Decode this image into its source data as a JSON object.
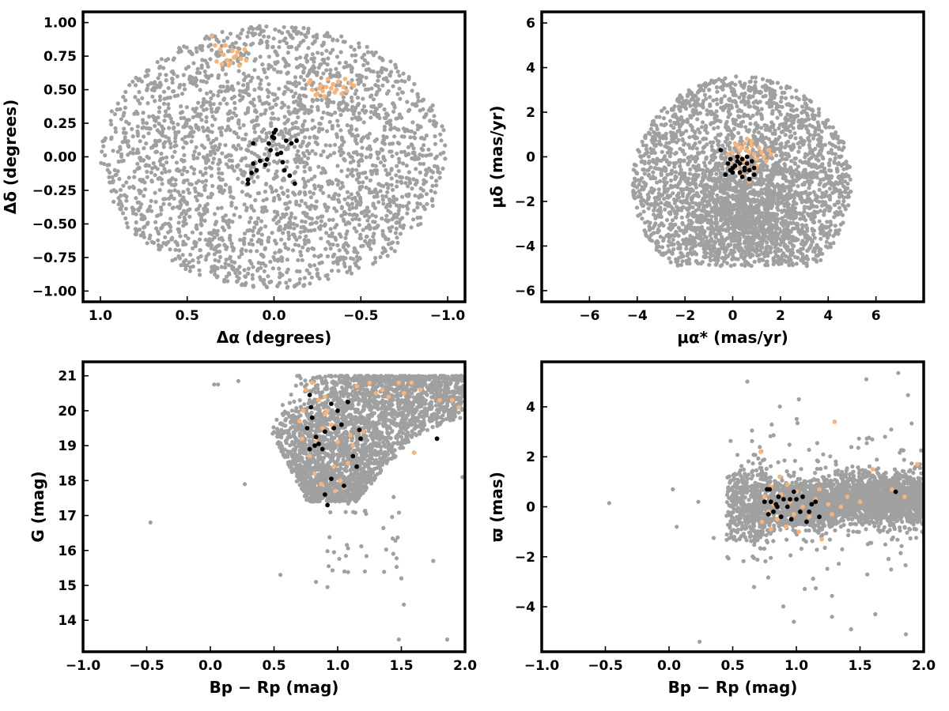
{
  "colors": {
    "field": "#a0a0a0",
    "members": "#000000",
    "groups": "#f8b37a"
  },
  "chart_data": [
    {
      "type": "scatter",
      "xlabel": "Δα (degrees)",
      "ylabel": "Δδ (degrees)",
      "xlim": [
        1.1,
        -1.1
      ],
      "ylim": [
        -1.08,
        1.08
      ],
      "xticks": [
        1.0,
        0.5,
        0.0,
        -0.5,
        -1.0
      ],
      "xtick_labels": [
        "1.0",
        "0.5",
        "0.0",
        "−0.5",
        "−1.0"
      ],
      "yticks": [
        -1.0,
        -0.75,
        -0.5,
        -0.25,
        0.0,
        0.25,
        0.5,
        0.75,
        1.0
      ],
      "ytick_labels": [
        "−1.00",
        "−0.75",
        "−0.50",
        "−0.25",
        "0.00",
        "0.25",
        "0.50",
        "0.75",
        "1.00"
      ],
      "series": [
        {
          "color": "field",
          "field": {
            "shape": "disk",
            "cx": 0.0,
            "cy": 0.0,
            "rx": 1.0,
            "ry": 0.98,
            "n": 2600
          }
        },
        {
          "color": "groups",
          "x": [
            0.36,
            0.34,
            0.31,
            0.29,
            0.27,
            0.25,
            0.23,
            0.21,
            0.19,
            0.17,
            0.16,
            0.3,
            0.26,
            0.22,
            0.33,
            0.28,
            0.24,
            0.2,
            -0.2,
            -0.22,
            -0.25,
            -0.27,
            -0.29,
            -0.31,
            -0.33,
            -0.35,
            -0.37,
            -0.4,
            -0.42,
            -0.44,
            -0.46,
            -0.24,
            -0.3,
            -0.36,
            -0.41,
            -0.28,
            -0.34,
            -0.39,
            -0.21,
            -0.26
          ],
          "y": [
            0.9,
            0.83,
            0.8,
            0.76,
            0.72,
            0.7,
            0.74,
            0.78,
            0.73,
            0.8,
            0.72,
            0.69,
            0.68,
            0.75,
            0.71,
            0.83,
            0.79,
            0.68,
            0.55,
            0.5,
            0.47,
            0.53,
            0.45,
            0.58,
            0.51,
            0.48,
            0.56,
            0.52,
            0.49,
            0.55,
            0.53,
            0.46,
            0.52,
            0.5,
            0.58,
            0.49,
            0.54,
            0.47,
            0.57,
            0.51
          ]
        },
        {
          "color": "members",
          "x": [
            0.15,
            0.15,
            0.13,
            0.12,
            0.1,
            0.08,
            0.05,
            0.04,
            0.02,
            0.0,
            0.0,
            -0.01,
            -0.02,
            -0.05,
            -0.06,
            -0.07,
            -0.09,
            -0.1,
            -0.12,
            -0.13,
            0.01,
            0.03,
            -0.04,
            0.12
          ],
          "y": [
            -0.2,
            -0.17,
            -0.12,
            0.1,
            -0.1,
            -0.03,
            -0.06,
            -0.02,
            0.05,
            0.14,
            0.18,
            0.2,
            0.02,
            -0.04,
            -0.1,
            0.12,
            -0.14,
            0.1,
            -0.2,
            0.12,
            0.15,
            0.1,
            0.03,
            -0.05
          ]
        }
      ]
    },
    {
      "type": "scatter",
      "xlabel": "μα* (mas/yr)",
      "ylabel": "μδ (mas/yr)",
      "xlim": [
        -8,
        8
      ],
      "ylim": [
        -6.5,
        6.5
      ],
      "xticks": [
        -6,
        -4,
        -2,
        0,
        2,
        4,
        6
      ],
      "xtick_labels": [
        "−6",
        "−4",
        "−2",
        "0",
        "2",
        "4",
        "6"
      ],
      "yticks": [
        -6,
        -4,
        -2,
        0,
        2,
        4,
        6
      ],
      "ytick_labels": [
        "−6",
        "−4",
        "−2",
        "0",
        "2",
        "4",
        "6"
      ],
      "series": [
        {
          "color": "field",
          "field": {
            "shape": "disk",
            "cx": 0.4,
            "cy": -1.2,
            "rx": 4.6,
            "ry": 3.7,
            "n": 2300,
            "core": [
              0.5,
              -2.5,
              1.4,
              1.3,
              1000
            ],
            "clip_y": [
              -4.9,
              4.9
            ]
          }
        },
        {
          "color": "groups",
          "x": [
            0.1,
            0.2,
            0.4,
            0.5,
            0.6,
            0.7,
            0.8,
            0.3,
            0.9,
            1.0,
            1.2,
            1.4,
            1.5,
            0.0,
            -0.1,
            0.2,
            0.6,
            0.9,
            1.1,
            0.4,
            0.7,
            1.3,
            0.5,
            0.8,
            -0.2,
            0.3,
            1.0,
            0.6,
            0.2,
            1.6
          ],
          "y": [
            0.6,
            0.5,
            0.4,
            0.6,
            0.3,
            0.2,
            0.5,
            0.0,
            0.1,
            -0.1,
            0.2,
            -0.2,
            0.3,
            0.2,
            -0.3,
            -0.5,
            -0.4,
            -0.6,
            0.4,
            -0.8,
            -1.1,
            0.0,
            -0.2,
            0.7,
            0.1,
            0.3,
            -0.4,
            0.8,
            -0.1,
            0.1
          ]
        },
        {
          "color": "members",
          "x": [
            -0.5,
            -0.3,
            -0.1,
            0.0,
            0.1,
            0.2,
            0.3,
            0.4,
            0.5,
            0.6,
            0.7,
            0.8,
            0.9,
            0.2,
            0.0,
            -0.2,
            0.5,
            0.7,
            0.4,
            0.1,
            0.6,
            0.9,
            0.3,
            -0.1
          ],
          "y": [
            0.3,
            -0.8,
            -0.6,
            -0.5,
            -0.4,
            -0.2,
            -0.7,
            -0.9,
            -0.5,
            -0.3,
            -0.6,
            -0.2,
            -0.8,
            0.0,
            -0.7,
            -0.3,
            -0.6,
            -1.0,
            -0.1,
            -0.4,
            0.0,
            -0.5,
            -0.3,
            -0.1
          ]
        }
      ]
    },
    {
      "type": "scatter",
      "xlabel": "Bp − Rp (mag)",
      "ylabel": "G (mag)",
      "xlim": [
        -1.0,
        2.0
      ],
      "ylim": [
        13.1,
        21.4
      ],
      "xticks": [
        -1.0,
        -0.5,
        0.0,
        0.5,
        1.0,
        1.5,
        2.0
      ],
      "xtick_labels": [
        "−1.0",
        "−0.5",
        "0.0",
        "0.5",
        "1.0",
        "1.5",
        "2.0"
      ],
      "yticks": [
        14,
        15,
        16,
        17,
        18,
        19,
        20,
        21
      ],
      "ytick_labels": [
        "14",
        "15",
        "16",
        "17",
        "18",
        "19",
        "20",
        "21"
      ],
      "series": [
        {
          "color": "field",
          "field": {
            "shape": "cmd",
            "n": 3200
          },
          "x": [
            -0.47,
            0.03,
            0.06,
            0.22,
            0.27,
            0.55,
            0.83,
            0.92,
            1.52,
            1.75,
            1.48,
            1.5,
            1.86,
            1.5,
            1.98
          ],
          "y": [
            16.8,
            20.75,
            20.75,
            20.85,
            17.9,
            15.3,
            15.1,
            14.95,
            14.45,
            15.7,
            13.45,
            15.2,
            13.45,
            15.2,
            18.1
          ]
        },
        {
          "color": "groups",
          "x": [
            0.73,
            0.75,
            0.8,
            0.85,
            0.88,
            0.9,
            0.92,
            0.95,
            1.0,
            1.02,
            1.05,
            1.1,
            1.15,
            0.78,
            0.83,
            0.97,
            1.25,
            1.35,
            1.48,
            1.52,
            1.6,
            1.65,
            1.8,
            0.7,
            0.72,
            0.9,
            0.98,
            1.08,
            1.12,
            1.2,
            1.3,
            1.58,
            1.9,
            1.95,
            0.82,
            0.87,
            1.4
          ],
          "y": [
            20.0,
            20.6,
            20.8,
            20.3,
            19.5,
            19.9,
            20.0,
            19.6,
            19.1,
            18.0,
            17.8,
            19.3,
            20.7,
            18.7,
            19.1,
            18.4,
            20.8,
            20.6,
            20.8,
            20.5,
            18.8,
            20.6,
            20.3,
            19.7,
            19.2,
            20.4,
            17.7,
            18.5,
            19.0,
            19.4,
            20.5,
            20.8,
            20.3,
            20.1,
            18.2,
            17.9,
            20.4
          ]
        },
        {
          "color": "members",
          "x": [
            0.78,
            0.79,
            0.8,
            0.76,
            0.83,
            0.85,
            0.88,
            0.9,
            0.92,
            0.95,
            0.97,
            1.0,
            1.03,
            1.05,
            1.08,
            1.12,
            1.15,
            1.17,
            1.18,
            1.78,
            0.78,
            0.82,
            0.9,
            0.95
          ],
          "y": [
            20.45,
            20.1,
            19.8,
            19.5,
            19.25,
            19.05,
            18.9,
            17.6,
            17.3,
            18.05,
            19.5,
            20.0,
            19.6,
            17.85,
            20.25,
            18.7,
            18.4,
            19.45,
            19.2,
            19.2,
            18.9,
            19.0,
            19.4,
            20.2
          ]
        }
      ]
    },
    {
      "type": "scatter",
      "xlabel": "Bp − Rp (mag)",
      "ylabel": "ϖ (mas)",
      "xlim": [
        -1.0,
        2.0
      ],
      "ylim": [
        -5.8,
        5.8
      ],
      "xticks": [
        -1.0,
        -0.5,
        0.0,
        0.5,
        1.0,
        1.5,
        2.0
      ],
      "xtick_labels": [
        "−1.0",
        "−0.5",
        "0.0",
        "0.5",
        "1.0",
        "1.5",
        "2.0"
      ],
      "yticks": [
        -4,
        -2,
        0,
        2,
        4
      ],
      "ytick_labels": [
        "−4",
        "−2",
        "0",
        "2",
        "4"
      ],
      "series": [
        {
          "color": "field",
          "field": {
            "shape": "parallax",
            "n": 3200
          },
          "x": [
            -0.47,
            0.03,
            0.06,
            0.23,
            0.24,
            0.98,
            1.28,
            1.55,
            1.8,
            1.86,
            1.43,
            1.62,
            0.35,
            1.02,
            1.97
          ],
          "y": [
            0.15,
            0.7,
            -0.8,
            0.2,
            -5.4,
            -4.6,
            -4.4,
            5.1,
            5.35,
            -5.1,
            -4.9,
            -4.3,
            -1.25,
            4.3,
            1.7
          ]
        },
        {
          "color": "groups",
          "x": [
            0.72,
            0.75,
            0.78,
            0.8,
            0.82,
            0.85,
            0.88,
            0.9,
            0.92,
            0.95,
            0.98,
            1.0,
            1.05,
            1.1,
            1.15,
            1.2,
            1.25,
            1.3,
            1.35,
            1.4,
            1.5,
            1.6,
            1.75,
            1.85,
            1.95,
            0.73,
            0.87,
            1.02,
            1.28,
            1.18,
            0.8,
            0.93
          ],
          "y": [
            2.2,
            0.4,
            -0.2,
            0.8,
            0.1,
            -0.5,
            0.5,
            0.3,
            -0.8,
            0.2,
            -0.3,
            0.6,
            0.0,
            -0.4,
            0.3,
            -1.3,
            0.1,
            3.4,
            0.0,
            0.4,
            0.2,
            1.5,
            0.7,
            0.4,
            1.7,
            -0.6,
            1.2,
            -1.0,
            -0.3,
            0.7,
            -0.9,
            0.9
          ]
        },
        {
          "color": "members",
          "x": [
            0.75,
            0.77,
            0.78,
            0.8,
            0.82,
            0.84,
            0.86,
            0.88,
            0.9,
            0.93,
            0.96,
            0.98,
            1.0,
            1.03,
            1.05,
            1.08,
            1.12,
            1.15,
            1.18,
            1.78,
            0.79,
            0.85,
            0.95,
            1.1
          ],
          "y": [
            0.2,
            0.7,
            -0.3,
            0.2,
            -0.2,
            0.1,
            0.4,
            -0.4,
            0.3,
            0.0,
            -0.5,
            0.6,
            0.3,
            -0.2,
            0.4,
            -0.6,
            0.1,
            0.2,
            -0.4,
            0.6,
            0.7,
            0.0,
            0.3,
            -0.2
          ]
        }
      ]
    }
  ]
}
